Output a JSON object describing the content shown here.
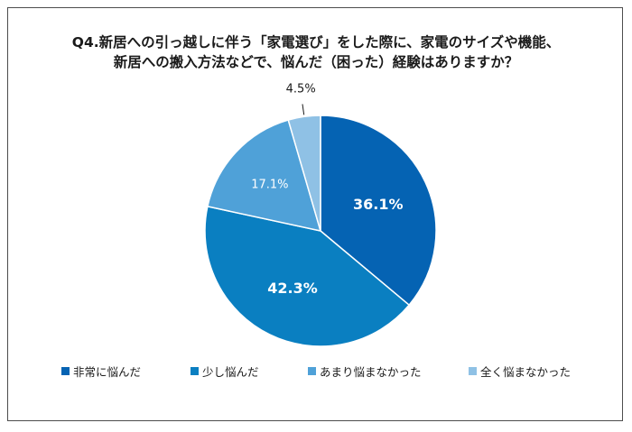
{
  "chart_data": {
    "type": "pie",
    "title_lines": [
      "Q4.新居への引っ越しに伴う「家電選び」をした際に、家電のサイズや機能、",
      "新居への搬入方法などで、悩んだ（困った）経験はありますか？"
    ],
    "categories": [
      "非常に悩んだ",
      "少し悩んだ",
      "あまり悩まなかった",
      "全く悩まなかった"
    ],
    "values": [
      36.1,
      42.3,
      17.1,
      4.5
    ],
    "data_labels": [
      "36.1%",
      "42.3%",
      "17.1%",
      "4.5%"
    ],
    "colors": [
      "#0563b3",
      "#0a7fc1",
      "#4fa1d8",
      "#8fc1e5"
    ],
    "label_colors": [
      "#ffffff",
      "#ffffff",
      "#ffffff",
      "#1a1a1a"
    ],
    "legend_position": "bottom"
  }
}
